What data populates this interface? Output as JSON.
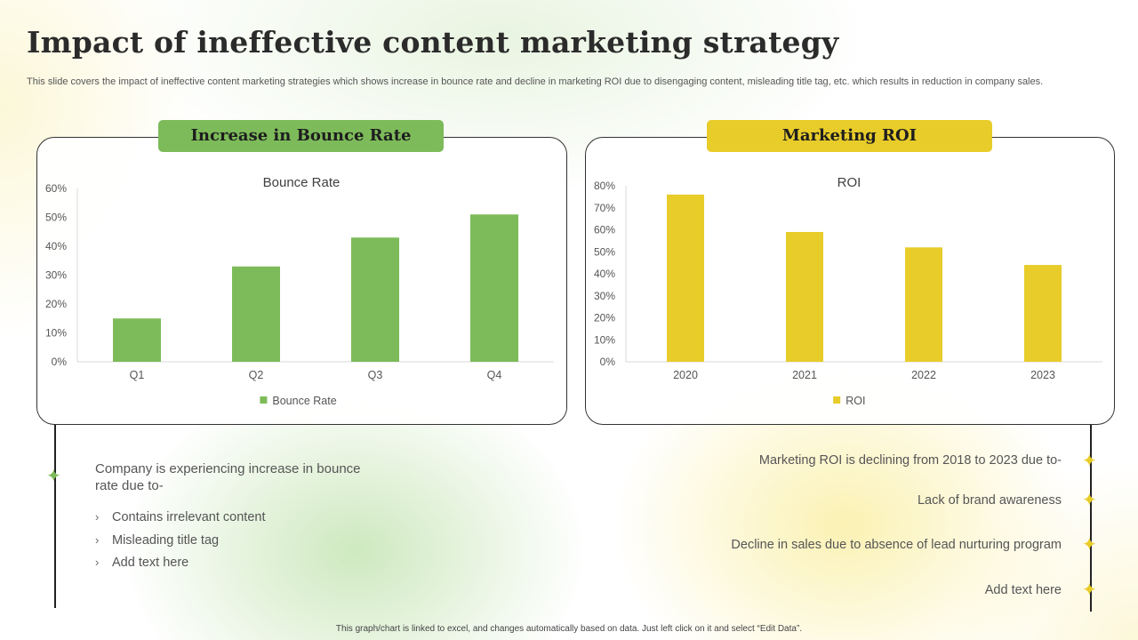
{
  "title": "Impact of ineffective content marketing strategy",
  "subtitle": "This slide covers the impact of ineffective content marketing strategies which shows increase in bounce rate and decline in marketing ROI due to disengaging content, misleading title tag, etc. which results in reduction in company sales.",
  "left_panel": {
    "header": "Increase in Bounce Rate",
    "lead": "Company is experiencing increase in bounce rate due to-",
    "bullets": [
      "Contains irrelevant content",
      "Misleading title tag",
      "Add text here"
    ]
  },
  "right_panel": {
    "header": "Marketing ROI",
    "points": [
      "Marketing ROI is declining from 2018 to 2023 due to-",
      "Lack of brand awareness",
      "Decline in sales due to absence of lead nurturing program",
      "Add text here"
    ]
  },
  "footer": "This graph/chart is linked to excel, and changes automatically based on data. Just left click on it and select “Edit Data”.",
  "colors": {
    "green": "#7dbb5a",
    "yellow": "#e8cc2a"
  },
  "chart_data": [
    {
      "type": "bar",
      "title": "Bounce Rate",
      "categories": [
        "Q1",
        "Q2",
        "Q3",
        "Q4"
      ],
      "series": [
        {
          "name": "Bounce Rate",
          "values": [
            15,
            33,
            43,
            51
          ]
        }
      ],
      "ylim": [
        0,
        60
      ],
      "yticks": [
        0,
        10,
        20,
        30,
        40,
        50,
        60
      ],
      "ytick_labels": [
        "0%",
        "10%",
        "20%",
        "30%",
        "40%",
        "50%",
        "60%"
      ],
      "color": "#7dbb5a",
      "grid": false,
      "legend": "bottom"
    },
    {
      "type": "bar",
      "title": "ROI",
      "categories": [
        "2020",
        "2021",
        "2022",
        "2023"
      ],
      "series": [
        {
          "name": "ROI",
          "values": [
            76,
            59,
            52,
            44
          ]
        }
      ],
      "ylim": [
        0,
        80
      ],
      "yticks": [
        0,
        10,
        20,
        30,
        40,
        50,
        60,
        70,
        80
      ],
      "ytick_labels": [
        "0%",
        "10%",
        "20%",
        "30%",
        "40%",
        "50%",
        "60%",
        "70%",
        "80%"
      ],
      "color": "#e8cc2a",
      "grid": false,
      "legend": "bottom"
    }
  ]
}
